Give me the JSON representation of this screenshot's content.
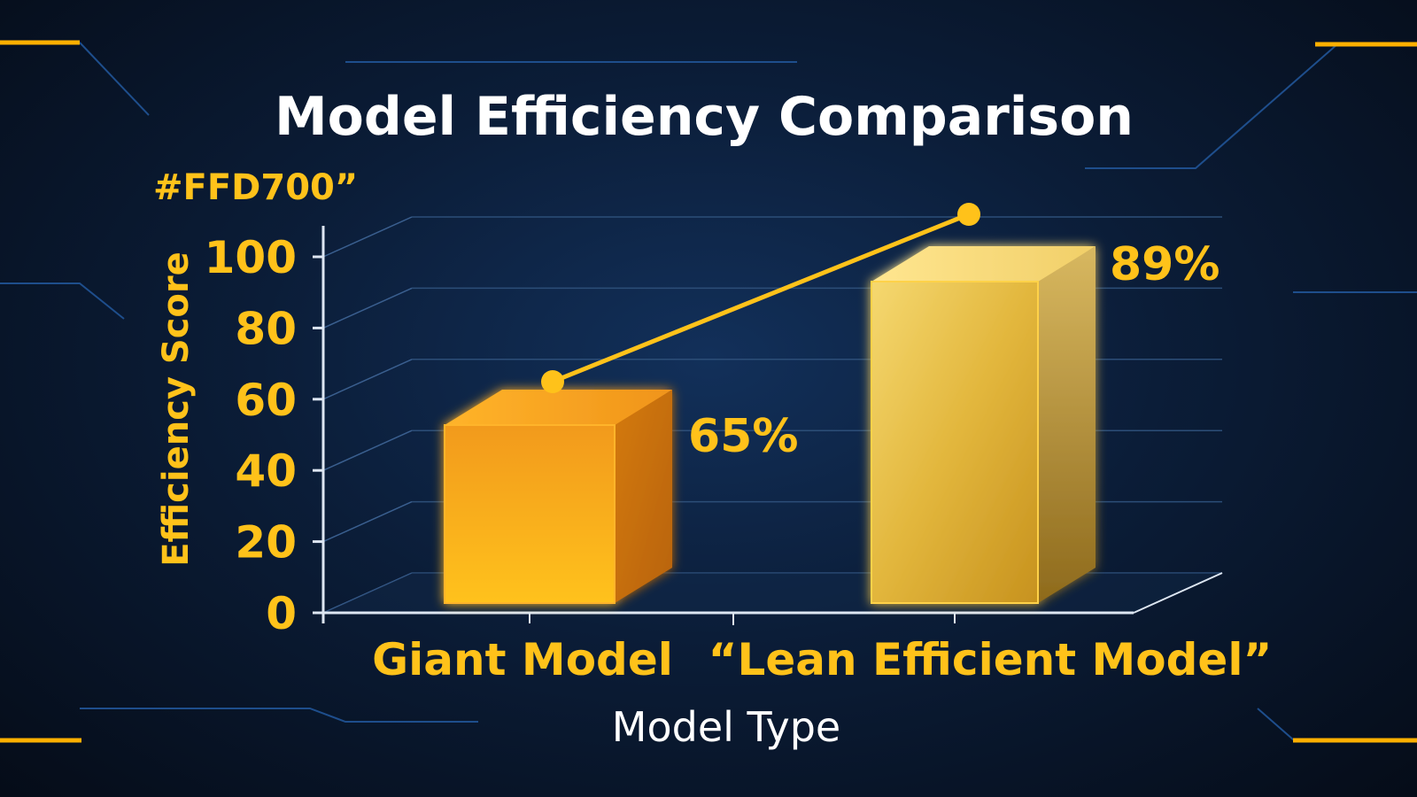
{
  "chart_data": {
    "type": "bar",
    "title": "Model Efficiency Comparison",
    "subtitle": "#FFD700”",
    "xlabel": "Model Type",
    "ylabel": "Efficiency Score",
    "categories": [
      "Giant Model",
      "“Lean Efficient Model”"
    ],
    "values": [
      65,
      89
    ],
    "data_labels": [
      "65%",
      "89%"
    ],
    "yticks": [
      "0",
      "20",
      "40",
      "60",
      "80",
      "100"
    ],
    "ylim": [
      0,
      100
    ],
    "grid": true,
    "trend_line": true,
    "style": "3d-bars"
  },
  "colors": {
    "accent": "#FFC21A",
    "bar_giant": "#F2A51A",
    "bar_lean": "#E8C24A",
    "title": "#FFFFFF",
    "background": "#0B1D38",
    "circuit": "#1E4E8C"
  }
}
